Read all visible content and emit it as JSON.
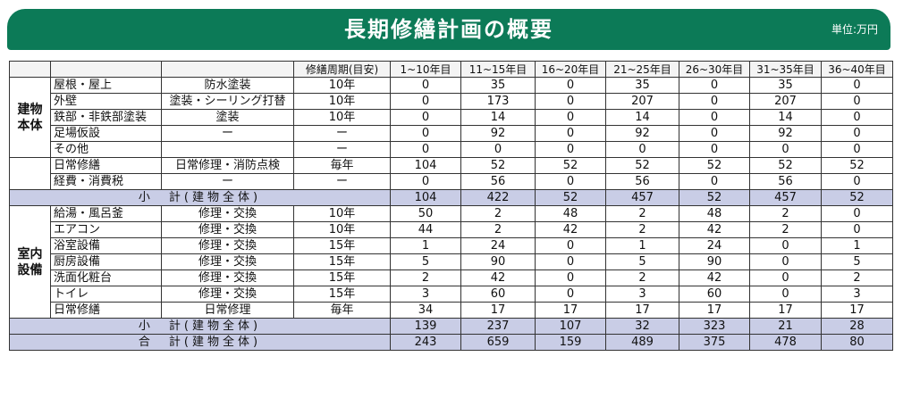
{
  "header": {
    "title": "長期修繕計画の概要",
    "unit": "単位:万円"
  },
  "columns": [
    "",
    "",
    "",
    "修繕周期(目安)",
    "1~10年目",
    "11~15年目",
    "16~20年目",
    "21~25年目",
    "26~30年目",
    "31~35年目",
    "36~40年目"
  ],
  "groups": {
    "building": "建物本体",
    "interior": "室内設備"
  },
  "building_rows": [
    {
      "item": "屋根・屋上",
      "work": "防水塗装",
      "cycle": "10年",
      "v": [
        "0",
        "35",
        "0",
        "35",
        "0",
        "35",
        "0"
      ]
    },
    {
      "item": "外壁",
      "work": "塗装・シーリング打替",
      "cycle": "10年",
      "v": [
        "0",
        "173",
        "0",
        "207",
        "0",
        "207",
        "0"
      ]
    },
    {
      "item": "鉄部・非鉄部塗装",
      "work": "塗装",
      "cycle": "10年",
      "v": [
        "0",
        "14",
        "0",
        "14",
        "0",
        "14",
        "0"
      ]
    },
    {
      "item": "足場仮設",
      "work": "ー",
      "cycle": "ー",
      "v": [
        "0",
        "92",
        "0",
        "92",
        "0",
        "92",
        "0"
      ]
    },
    {
      "item": "その他",
      "work": "",
      "cycle": "ー",
      "v": [
        "0",
        "0",
        "0",
        "0",
        "0",
        "0",
        "0"
      ]
    }
  ],
  "daily_rows": [
    {
      "item": "日常修繕",
      "work": "日常修理・消防点検",
      "cycle": "毎年",
      "v": [
        "104",
        "52",
        "52",
        "52",
        "52",
        "52",
        "52"
      ]
    },
    {
      "item": "経費・消費税",
      "work": "ー",
      "cycle": "ー",
      "v": [
        "0",
        "56",
        "0",
        "56",
        "0",
        "56",
        "0"
      ]
    }
  ],
  "subtotal_building": {
    "label": "小　計(建物全体)",
    "v": [
      "104",
      "422",
      "52",
      "457",
      "52",
      "457",
      "52"
    ]
  },
  "interior_rows": [
    {
      "item": "給湯・風呂釜",
      "work": "修理・交換",
      "cycle": "10年",
      "v": [
        "50",
        "2",
        "48",
        "2",
        "48",
        "2",
        "0"
      ]
    },
    {
      "item": "エアコン",
      "work": "修理・交換",
      "cycle": "10年",
      "v": [
        "44",
        "2",
        "42",
        "2",
        "42",
        "2",
        "0"
      ]
    },
    {
      "item": "浴室設備",
      "work": "修理・交換",
      "cycle": "15年",
      "v": [
        "1",
        "24",
        "0",
        "1",
        "24",
        "0",
        "1"
      ]
    },
    {
      "item": "厨房設備",
      "work": "修理・交換",
      "cycle": "15年",
      "v": [
        "5",
        "90",
        "0",
        "5",
        "90",
        "0",
        "5"
      ]
    },
    {
      "item": "洗面化粧台",
      "work": "修理・交換",
      "cycle": "15年",
      "v": [
        "2",
        "42",
        "0",
        "2",
        "42",
        "0",
        "2"
      ]
    },
    {
      "item": "トイレ",
      "work": "修理・交換",
      "cycle": "15年",
      "v": [
        "3",
        "60",
        "0",
        "3",
        "60",
        "0",
        "3"
      ]
    },
    {
      "item": "日常修繕",
      "work": "日常修理",
      "cycle": "毎年",
      "v": [
        "34",
        "17",
        "17",
        "17",
        "17",
        "17",
        "17"
      ]
    }
  ],
  "subtotal_interior": {
    "label": "小　計(建物全体)",
    "v": [
      "139",
      "237",
      "107",
      "32",
      "323",
      "21",
      "28"
    ]
  },
  "grand_total": {
    "label": "合　計(建物全体)",
    "v": [
      "243",
      "659",
      "159",
      "489",
      "375",
      "478",
      "80"
    ]
  }
}
